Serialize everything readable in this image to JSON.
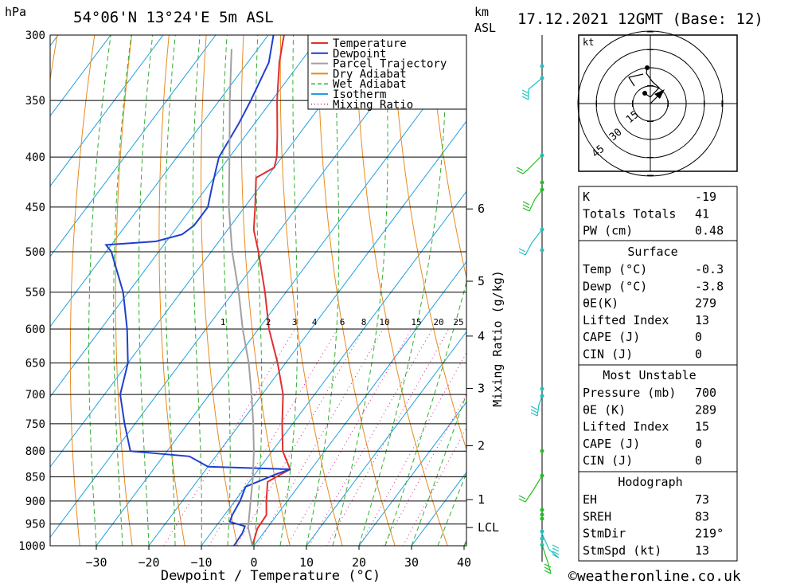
{
  "header": {
    "pressure_unit": "hPa",
    "location": "54°06'N  13°24'E  5m  ASL",
    "km_label": "km",
    "asl_label": "ASL",
    "datetime": "17.12.2021  12GMT  (Base: 12)"
  },
  "footer": {
    "copyright": "©weatheronline.co.uk"
  },
  "legend": [
    {
      "label": "Temperature",
      "color": "#e03030",
      "style": "solid"
    },
    {
      "label": "Dewpoint",
      "color": "#1f3fd0",
      "style": "solid"
    },
    {
      "label": "Parcel Trajectory",
      "color": "#a0a0a0",
      "style": "solid"
    },
    {
      "label": "Dry Adiabat",
      "color": "#e88a20",
      "style": "solid"
    },
    {
      "label": "Wet Adiabat",
      "color": "#30b030",
      "style": "dash"
    },
    {
      "label": "Isotherm",
      "color": "#20a0e0",
      "style": "solid"
    },
    {
      "label": "Mixing Ratio",
      "color": "#d02090",
      "style": "dot"
    }
  ],
  "chart_data": {
    "type": "line",
    "subtype": "skew-T log-P sounding",
    "xlabel": "Dewpoint / Temperature (°C)",
    "ylabel": "hPa",
    "xlim": [
      -40,
      40
    ],
    "ylim": [
      1000,
      300
    ],
    "x_ticks": [
      "−30",
      "−20",
      "−10",
      "0",
      "10",
      "20",
      "30",
      "40"
    ],
    "x_tick_values": [
      -30,
      -20,
      -10,
      0,
      10,
      20,
      30,
      40
    ],
    "pressure_levels": [
      300,
      350,
      400,
      450,
      500,
      550,
      600,
      650,
      700,
      750,
      800,
      850,
      900,
      950,
      1000
    ],
    "km_ticks": [
      {
        "label": "6",
        "p": 452
      },
      {
        "label": "5",
        "p": 536
      },
      {
        "label": "4",
        "p": 610
      },
      {
        "label": "3",
        "p": 690
      },
      {
        "label": "2",
        "p": 790
      },
      {
        "label": "1",
        "p": 897
      },
      {
        "label": "LCL",
        "p": 958
      }
    ],
    "mixing_ratio_label": "Mixing Ratio (g/kg)",
    "mixing_ratio_labels": [
      {
        "label": "1",
        "x": 280
      },
      {
        "label": "2",
        "x": 337
      },
      {
        "label": "3",
        "x": 370
      },
      {
        "label": "4",
        "x": 395
      },
      {
        "label": "6",
        "x": 430
      },
      {
        "label": "8",
        "x": 457
      },
      {
        "label": "10",
        "x": 483
      },
      {
        "label": "15",
        "x": 523
      },
      {
        "label": "20",
        "x": 551
      },
      {
        "label": "25",
        "x": 576
      }
    ],
    "series": [
      {
        "name": "Temperature",
        "color": "#e03030",
        "points": [
          [
            1000,
            -0.3
          ],
          [
            960,
            -1.8
          ],
          [
            930,
            -2
          ],
          [
            900,
            -4
          ],
          [
            860,
            -6.5
          ],
          [
            845,
            -5
          ],
          [
            835,
            -4
          ],
          [
            800,
            -8
          ],
          [
            750,
            -12
          ],
          [
            700,
            -16
          ],
          [
            650,
            -21.5
          ],
          [
            600,
            -28
          ],
          [
            550,
            -34
          ],
          [
            500,
            -41
          ],
          [
            475,
            -45
          ],
          [
            450,
            -48
          ],
          [
            420,
            -52
          ],
          [
            410,
            -50
          ],
          [
            400,
            -51
          ],
          [
            380,
            -54
          ],
          [
            350,
            -59
          ],
          [
            320,
            -64
          ],
          [
            300,
            -67
          ]
        ]
      },
      {
        "name": "Dewpoint",
        "color": "#1f3fd0",
        "points": [
          [
            1000,
            -3.8
          ],
          [
            970,
            -4
          ],
          [
            955,
            -4.5
          ],
          [
            945,
            -8
          ],
          [
            930,
            -8.5
          ],
          [
            900,
            -9
          ],
          [
            870,
            -10
          ],
          [
            845,
            -6
          ],
          [
            835,
            -4
          ],
          [
            830,
            -20
          ],
          [
            810,
            -25
          ],
          [
            800,
            -37
          ],
          [
            750,
            -42
          ],
          [
            700,
            -47
          ],
          [
            650,
            -50
          ],
          [
            600,
            -55
          ],
          [
            550,
            -61
          ],
          [
            500,
            -69
          ],
          [
            492,
            -71
          ],
          [
            488,
            -62
          ],
          [
            480,
            -58
          ],
          [
            470,
            -57
          ],
          [
            450,
            -57
          ],
          [
            430,
            -59
          ],
          [
            410,
            -61
          ],
          [
            400,
            -62
          ],
          [
            370,
            -63
          ],
          [
            350,
            -64
          ],
          [
            320,
            -66
          ],
          [
            300,
            -69
          ]
        ]
      },
      {
        "name": "Parcel Trajectory",
        "color": "#a0a0a0",
        "points": [
          [
            1000,
            -0.3
          ],
          [
            958,
            -3.7
          ],
          [
            900,
            -7
          ],
          [
            850,
            -10
          ],
          [
            800,
            -13.5
          ],
          [
            750,
            -17.5
          ],
          [
            700,
            -22
          ],
          [
            650,
            -27
          ],
          [
            600,
            -33
          ],
          [
            550,
            -39
          ],
          [
            500,
            -46
          ],
          [
            450,
            -53
          ],
          [
            400,
            -60
          ],
          [
            350,
            -68
          ],
          [
            310,
            -75
          ]
        ]
      }
    ]
  },
  "hodograph": {
    "unit": "kt",
    "ring_labels": [
      "15",
      "30",
      "45"
    ]
  },
  "indices": {
    "general": [
      {
        "label": "K",
        "value": "-19"
      },
      {
        "label": "Totals Totals",
        "value": "41"
      },
      {
        "label": "PW (cm)",
        "value": "0.48"
      }
    ],
    "surface": {
      "title": "Surface",
      "rows": [
        {
          "label": "Temp (°C)",
          "value": "-0.3"
        },
        {
          "label": "Dewp (°C)",
          "value": "-3.8"
        },
        {
          "label": "θE(K)",
          "value": "279"
        },
        {
          "label": "Lifted Index",
          "value": "13"
        },
        {
          "label": "CAPE (J)",
          "value": "0"
        },
        {
          "label": "CIN (J)",
          "value": "0"
        }
      ]
    },
    "most_unstable": {
      "title": "Most Unstable",
      "rows": [
        {
          "label": "Pressure (mb)",
          "value": "700"
        },
        {
          "label": "θE (K)",
          "value": "289"
        },
        {
          "label": "Lifted Index",
          "value": "15"
        },
        {
          "label": "CAPE (J)",
          "value": "0"
        },
        {
          "label": "CIN (J)",
          "value": "0"
        }
      ]
    },
    "hodograph_box": {
      "title": "Hodograph",
      "rows": [
        {
          "label": "EH",
          "value": "73"
        },
        {
          "label": "SREH",
          "value": "83"
        },
        {
          "label": "StmDir",
          "value": "219°"
        },
        {
          "label": "StmSpd (kt)",
          "value": "13"
        }
      ]
    }
  }
}
